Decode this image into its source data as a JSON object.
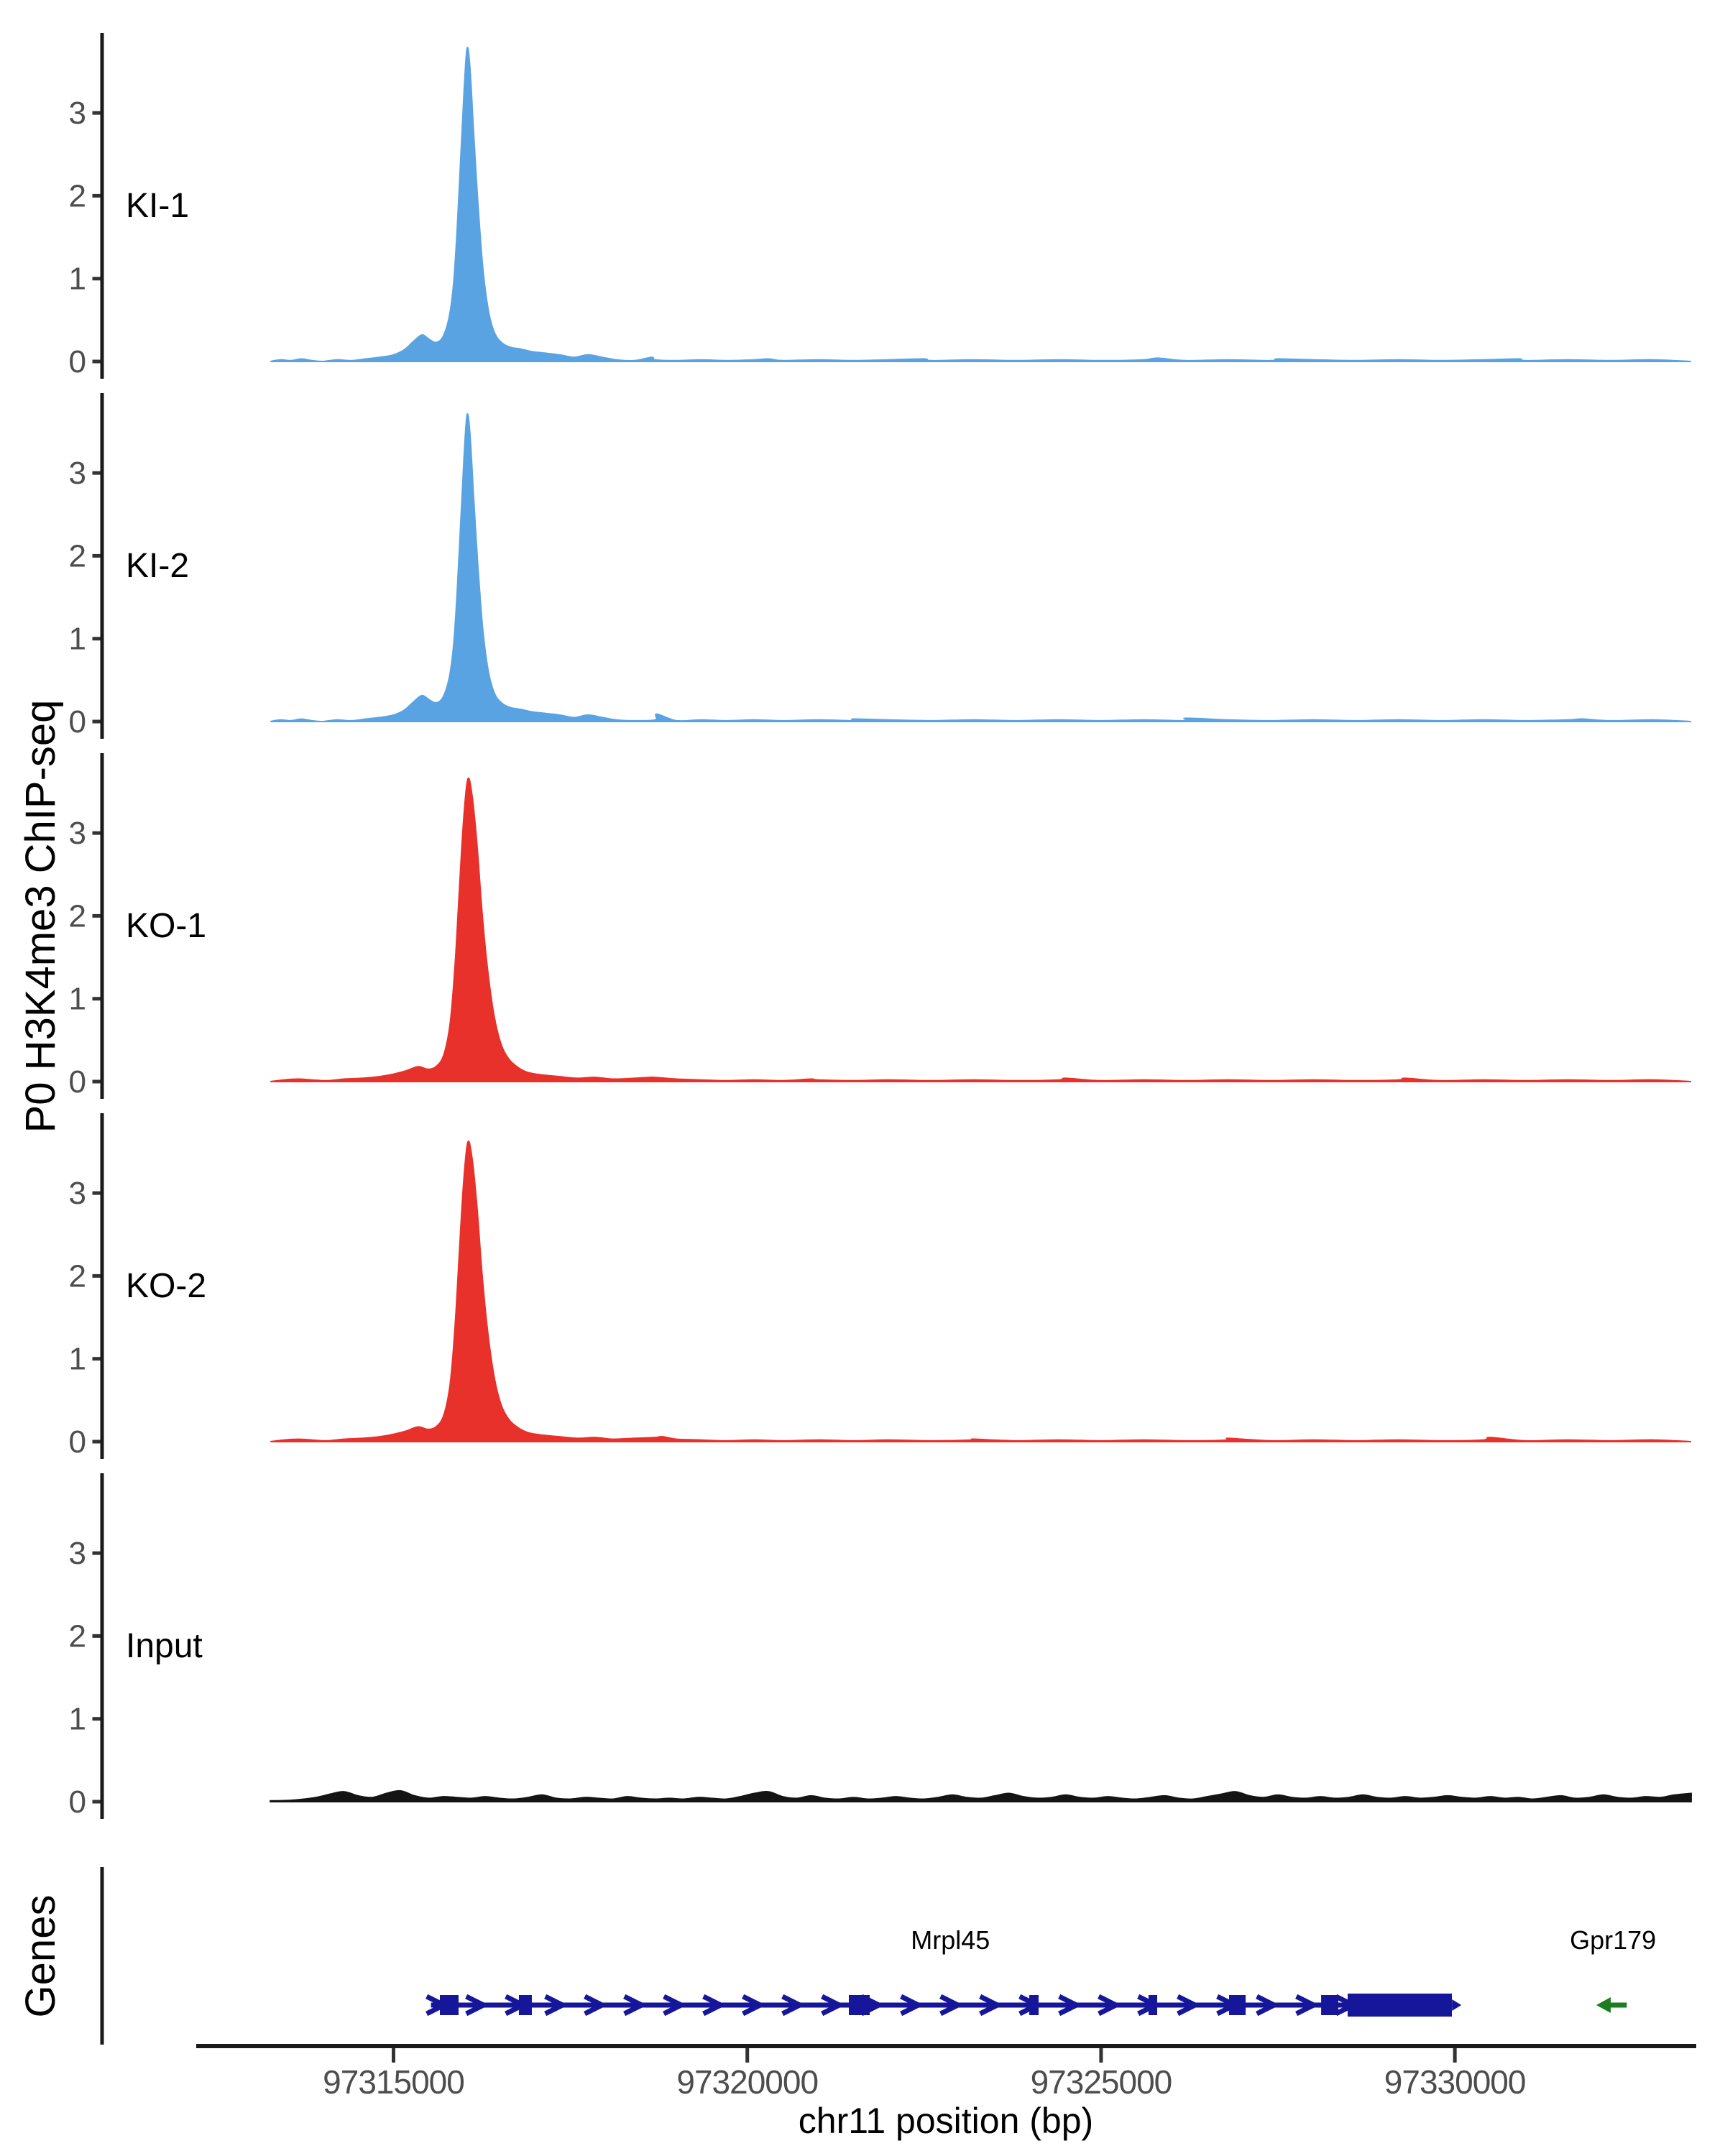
{
  "chart_data": {
    "type": "area",
    "title": "",
    "ylabel": "P0 H3K4me3 ChIP-seq",
    "xlabel": "chr11 position (bp)",
    "chromosome": "chr11",
    "x_ticks": [
      97315000,
      97320000,
      97325000,
      97330000
    ],
    "x_tick_labels": [
      "97315000",
      "97320000",
      "97325000",
      "97330000"
    ],
    "x_range_bp": [
      97312230,
      97333420
    ],
    "data_range_bp": [
      97313260,
      97333340
    ],
    "y_ticks": [
      0,
      1,
      2,
      3
    ],
    "y_max": 3.97,
    "grid": false,
    "legend_position": "none",
    "colors": {
      "ki": "#5AA3E3",
      "ko": "#E8312B",
      "input": "#141414",
      "gene_model": "#16169B",
      "gene_arrow_green": "#1E7D20",
      "axis": "#1a1a1a",
      "tick_text": "#4d4d4d"
    },
    "tracks": [
      {
        "label": "KI-1",
        "color": "#5AA3E3",
        "profile": "ki",
        "amplitude": 1.0,
        "noise": [
          [
            97318650,
            0.05
          ],
          [
            97320300,
            0.03
          ],
          [
            97322500,
            0.03
          ],
          [
            97325800,
            0.04
          ],
          [
            97327500,
            0.03
          ],
          [
            97330900,
            0.03
          ]
        ]
      },
      {
        "label": "KI-2",
        "color": "#5AA3E3",
        "profile": "ki",
        "amplitude": 0.98,
        "noise": [
          [
            97318720,
            0.09
          ],
          [
            97321500,
            0.03
          ],
          [
            97326200,
            0.04
          ],
          [
            97331800,
            0.03
          ]
        ]
      },
      {
        "label": "KO-1",
        "color": "#E8312B",
        "profile": "ko",
        "amplitude": 1.0,
        "noise": [
          [
            97318600,
            0.05
          ],
          [
            97320900,
            0.03
          ],
          [
            97324500,
            0.04
          ],
          [
            97329300,
            0.04
          ]
        ]
      },
      {
        "label": "KO-2",
        "color": "#E8312B",
        "profile": "ko",
        "amplitude": 0.99,
        "noise": [
          [
            97318800,
            0.06
          ],
          [
            97323200,
            0.03
          ],
          [
            97326800,
            0.04
          ],
          [
            97330500,
            0.05
          ]
        ]
      },
      {
        "label": "Input",
        "color": "#141414",
        "profile": "input",
        "amplitude": 1.0,
        "noise": []
      }
    ],
    "profiles": {
      "ki": [
        [
          97313260,
          0.0
        ],
        [
          97313400,
          0.02
        ],
        [
          97313550,
          0.01
        ],
        [
          97313700,
          0.03
        ],
        [
          97313850,
          0.01
        ],
        [
          97314000,
          0.0
        ],
        [
          97314200,
          0.02
        ],
        [
          97314400,
          0.01
        ],
        [
          97314600,
          0.03
        ],
        [
          97314800,
          0.05
        ],
        [
          97315000,
          0.08
        ],
        [
          97315150,
          0.14
        ],
        [
          97315280,
          0.24
        ],
        [
          97315400,
          0.32
        ],
        [
          97315500,
          0.27
        ],
        [
          97315600,
          0.23
        ],
        [
          97315700,
          0.3
        ],
        [
          97315790,
          0.55
        ],
        [
          97315850,
          0.95
        ],
        [
          97315900,
          1.6
        ],
        [
          97315950,
          2.45
        ],
        [
          97316000,
          3.3
        ],
        [
          97316040,
          3.78
        ],
        [
          97316080,
          3.55
        ],
        [
          97316130,
          2.8
        ],
        [
          97316190,
          1.95
        ],
        [
          97316260,
          1.15
        ],
        [
          97316340,
          0.62
        ],
        [
          97316430,
          0.34
        ],
        [
          97316540,
          0.22
        ],
        [
          97316660,
          0.17
        ],
        [
          97316800,
          0.15
        ],
        [
          97316950,
          0.12
        ],
        [
          97317150,
          0.1
        ],
        [
          97317350,
          0.08
        ],
        [
          97317550,
          0.05
        ],
        [
          97317750,
          0.08
        ],
        [
          97317950,
          0.05
        ],
        [
          97318150,
          0.02
        ],
        [
          97318400,
          0.01
        ],
        [
          97318700,
          0.02
        ],
        [
          97319000,
          0.01
        ],
        [
          97319350,
          0.02
        ],
        [
          97319700,
          0.01
        ],
        [
          97320100,
          0.02
        ],
        [
          97320500,
          0.01
        ],
        [
          97321000,
          0.02
        ],
        [
          97321500,
          0.01
        ],
        [
          97322000,
          0.02
        ],
        [
          97322600,
          0.01
        ],
        [
          97323200,
          0.02
        ],
        [
          97323800,
          0.01
        ],
        [
          97324400,
          0.02
        ],
        [
          97325000,
          0.01
        ],
        [
          97325600,
          0.02
        ],
        [
          97326200,
          0.01
        ],
        [
          97326800,
          0.02
        ],
        [
          97327400,
          0.01
        ],
        [
          97328000,
          0.02
        ],
        [
          97328600,
          0.01
        ],
        [
          97329200,
          0.02
        ],
        [
          97329800,
          0.01
        ],
        [
          97330400,
          0.02
        ],
        [
          97331000,
          0.01
        ],
        [
          97331600,
          0.02
        ],
        [
          97332200,
          0.01
        ],
        [
          97332800,
          0.02
        ],
        [
          97333340,
          0.0
        ]
      ],
      "ko": [
        [
          97313260,
          0.0
        ],
        [
          97313450,
          0.02
        ],
        [
          97313650,
          0.03
        ],
        [
          97313850,
          0.02
        ],
        [
          97314050,
          0.01
        ],
        [
          97314300,
          0.03
        ],
        [
          97314550,
          0.04
        ],
        [
          97314800,
          0.06
        ],
        [
          97315000,
          0.09
        ],
        [
          97315180,
          0.13
        ],
        [
          97315350,
          0.18
        ],
        [
          97315480,
          0.15
        ],
        [
          97315600,
          0.18
        ],
        [
          97315710,
          0.32
        ],
        [
          97315800,
          0.7
        ],
        [
          97315870,
          1.4
        ],
        [
          97315930,
          2.3
        ],
        [
          97315990,
          3.15
        ],
        [
          97316050,
          3.65
        ],
        [
          97316110,
          3.45
        ],
        [
          97316180,
          2.85
        ],
        [
          97316250,
          2.05
        ],
        [
          97316330,
          1.35
        ],
        [
          97316420,
          0.8
        ],
        [
          97316520,
          0.45
        ],
        [
          97316630,
          0.27
        ],
        [
          97316760,
          0.17
        ],
        [
          97316900,
          0.11
        ],
        [
          97317100,
          0.08
        ],
        [
          97317350,
          0.06
        ],
        [
          97317600,
          0.04
        ],
        [
          97317850,
          0.05
        ],
        [
          97318100,
          0.03
        ],
        [
          97318400,
          0.04
        ],
        [
          97318700,
          0.05
        ],
        [
          97319000,
          0.03
        ],
        [
          97319350,
          0.02
        ],
        [
          97319700,
          0.01
        ],
        [
          97320100,
          0.02
        ],
        [
          97320500,
          0.01
        ],
        [
          97321000,
          0.02
        ],
        [
          97321500,
          0.01
        ],
        [
          97322000,
          0.02
        ],
        [
          97322600,
          0.01
        ],
        [
          97323200,
          0.02
        ],
        [
          97323800,
          0.01
        ],
        [
          97324400,
          0.02
        ],
        [
          97325000,
          0.01
        ],
        [
          97325600,
          0.02
        ],
        [
          97326200,
          0.01
        ],
        [
          97326800,
          0.02
        ],
        [
          97327400,
          0.01
        ],
        [
          97328000,
          0.02
        ],
        [
          97328600,
          0.01
        ],
        [
          97329200,
          0.02
        ],
        [
          97329800,
          0.01
        ],
        [
          97330400,
          0.02
        ],
        [
          97331000,
          0.01
        ],
        [
          97331600,
          0.02
        ],
        [
          97332200,
          0.01
        ],
        [
          97332800,
          0.02
        ],
        [
          97333340,
          0.0
        ]
      ],
      "input": [
        [
          97313260,
          0.01
        ],
        [
          97313600,
          0.02
        ],
        [
          97313900,
          0.05
        ],
        [
          97314100,
          0.09
        ],
        [
          97314300,
          0.12
        ],
        [
          97314500,
          0.07
        ],
        [
          97314700,
          0.05
        ],
        [
          97314900,
          0.1
        ],
        [
          97315100,
          0.13
        ],
        [
          97315300,
          0.07
        ],
        [
          97315500,
          0.04
        ],
        [
          97315700,
          0.06
        ],
        [
          97315900,
          0.05
        ],
        [
          97316100,
          0.04
        ],
        [
          97316300,
          0.06
        ],
        [
          97316500,
          0.04
        ],
        [
          97316700,
          0.03
        ],
        [
          97316900,
          0.05
        ],
        [
          97317100,
          0.08
        ],
        [
          97317300,
          0.04
        ],
        [
          97317500,
          0.03
        ],
        [
          97317700,
          0.05
        ],
        [
          97317900,
          0.04
        ],
        [
          97318100,
          0.03
        ],
        [
          97318300,
          0.06
        ],
        [
          97318500,
          0.04
        ],
        [
          97318700,
          0.03
        ],
        [
          97318900,
          0.04
        ],
        [
          97319100,
          0.03
        ],
        [
          97319300,
          0.05
        ],
        [
          97319500,
          0.04
        ],
        [
          97319700,
          0.03
        ],
        [
          97319900,
          0.06
        ],
        [
          97320100,
          0.1
        ],
        [
          97320300,
          0.12
        ],
        [
          97320500,
          0.06
        ],
        [
          97320700,
          0.04
        ],
        [
          97320900,
          0.07
        ],
        [
          97321100,
          0.04
        ],
        [
          97321300,
          0.03
        ],
        [
          97321500,
          0.05
        ],
        [
          97321700,
          0.03
        ],
        [
          97321900,
          0.04
        ],
        [
          97322100,
          0.06
        ],
        [
          97322300,
          0.04
        ],
        [
          97322500,
          0.03
        ],
        [
          97322700,
          0.05
        ],
        [
          97322900,
          0.08
        ],
        [
          97323100,
          0.05
        ],
        [
          97323300,
          0.04
        ],
        [
          97323500,
          0.07
        ],
        [
          97323700,
          0.1
        ],
        [
          97323900,
          0.06
        ],
        [
          97324100,
          0.04
        ],
        [
          97324300,
          0.05
        ],
        [
          97324500,
          0.08
        ],
        [
          97324700,
          0.05
        ],
        [
          97324900,
          0.04
        ],
        [
          97325100,
          0.06
        ],
        [
          97325300,
          0.04
        ],
        [
          97325500,
          0.03
        ],
        [
          97325700,
          0.05
        ],
        [
          97325900,
          0.07
        ],
        [
          97326100,
          0.04
        ],
        [
          97326300,
          0.03
        ],
        [
          97326500,
          0.06
        ],
        [
          97326700,
          0.09
        ],
        [
          97326900,
          0.12
        ],
        [
          97327100,
          0.07
        ],
        [
          97327300,
          0.05
        ],
        [
          97327500,
          0.08
        ],
        [
          97327700,
          0.05
        ],
        [
          97327900,
          0.04
        ],
        [
          97328100,
          0.06
        ],
        [
          97328300,
          0.04
        ],
        [
          97328500,
          0.05
        ],
        [
          97328700,
          0.08
        ],
        [
          97328900,
          0.05
        ],
        [
          97329100,
          0.04
        ],
        [
          97329300,
          0.06
        ],
        [
          97329500,
          0.04
        ],
        [
          97329700,
          0.05
        ],
        [
          97329900,
          0.07
        ],
        [
          97330100,
          0.05
        ],
        [
          97330300,
          0.04
        ],
        [
          97330500,
          0.06
        ],
        [
          97330700,
          0.04
        ],
        [
          97330900,
          0.05
        ],
        [
          97331100,
          0.03
        ],
        [
          97331300,
          0.05
        ],
        [
          97331500,
          0.07
        ],
        [
          97331700,
          0.04
        ],
        [
          97331900,
          0.05
        ],
        [
          97332100,
          0.08
        ],
        [
          97332300,
          0.05
        ],
        [
          97332500,
          0.04
        ],
        [
          97332700,
          0.06
        ],
        [
          97332900,
          0.05
        ],
        [
          97333100,
          0.08
        ],
        [
          97333340,
          0.1
        ]
      ]
    },
    "genes": {
      "label": "Genes",
      "items": [
        {
          "name": "Mrpl45",
          "type": "gene-model",
          "color": "#16169B",
          "strand": "+",
          "start": 97315530,
          "end": 97329960,
          "label_bp": 97322870,
          "exons": [
            [
              97315655,
              97315919
            ],
            [
              97316772,
              97316955
            ],
            [
              97321435,
              97321730
            ],
            [
              97323985,
              97324117
            ],
            [
              97325671,
              97325793
            ],
            [
              97326809,
              97327043
            ],
            [
              97328110,
              97328353
            ],
            [
              97328485,
              97329958
            ]
          ],
          "wide_exon_index": 7
        },
        {
          "name": "Gpr179",
          "type": "arrow",
          "color": "#1E7D20",
          "strand": "-",
          "start": 97332060,
          "end": 97332430,
          "label_bp": 97332235
        }
      ]
    }
  }
}
